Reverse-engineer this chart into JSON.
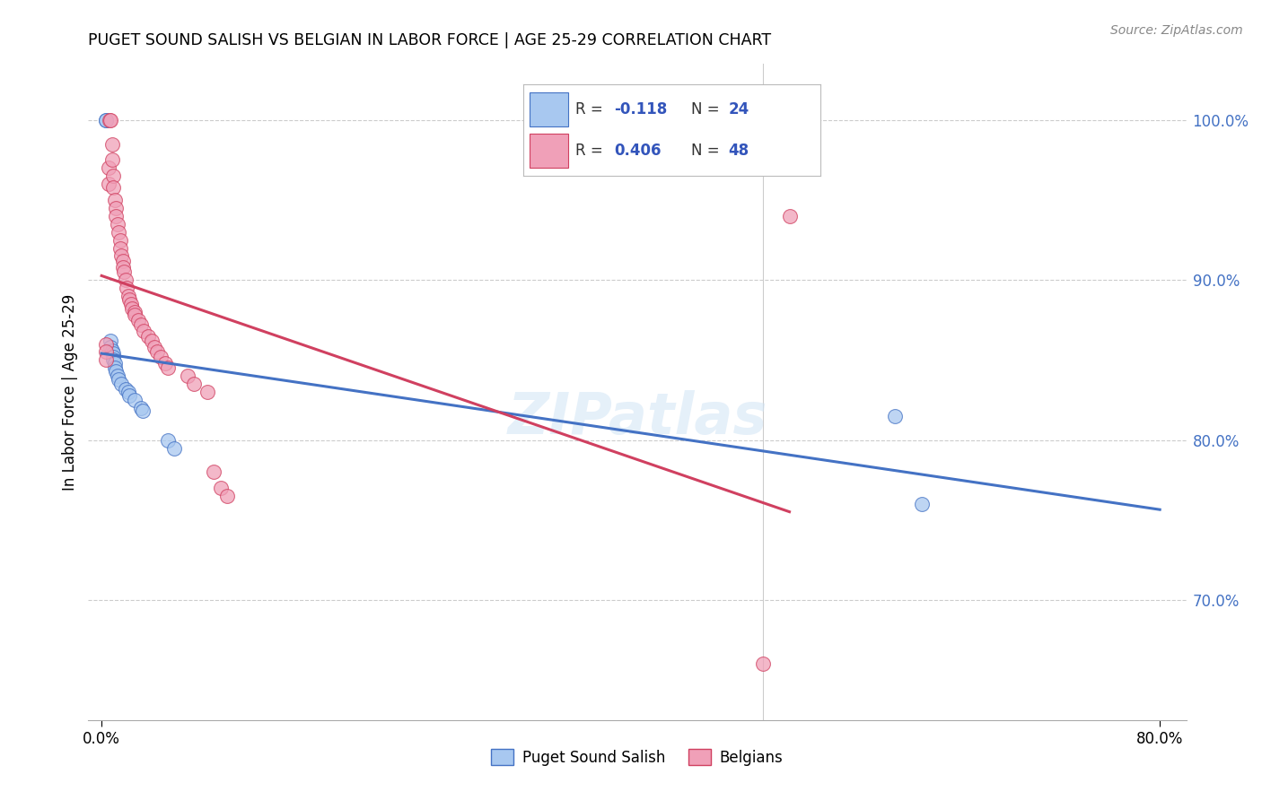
{
  "title": "PUGET SOUND SALISH VS BELGIAN IN LABOR FORCE | AGE 25-29 CORRELATION CHART",
  "source": "Source: ZipAtlas.com",
  "ylabel": "In Labor Force | Age 25-29",
  "xlim": [
    -0.01,
    0.82
  ],
  "ylim": [
    0.625,
    1.035
  ],
  "salish_R": -0.118,
  "salish_N": 24,
  "belgian_R": 0.406,
  "belgian_N": 48,
  "salish_color": "#A8C8F0",
  "belgian_color": "#F0A0B8",
  "salish_line_color": "#4472C4",
  "belgian_line_color": "#D04060",
  "background_color": "#FFFFFF",
  "grid_color": "#CCCCCC",
  "watermark": "ZIPatlas",
  "legend_label_1": "Puget Sound Salish",
  "legend_label_2": "Belgians",
  "salish_x": [
    0.003,
    0.003,
    0.007,
    0.007,
    0.008,
    0.009,
    0.009,
    0.009,
    0.01,
    0.01,
    0.011,
    0.012,
    0.013,
    0.015,
    0.018,
    0.02,
    0.021,
    0.025,
    0.03,
    0.031,
    0.05,
    0.055,
    0.6,
    0.62
  ],
  "salish_y": [
    1.0,
    1.0,
    0.862,
    0.858,
    0.856,
    0.854,
    0.852,
    0.85,
    0.848,
    0.845,
    0.843,
    0.84,
    0.838,
    0.835,
    0.832,
    0.83,
    0.828,
    0.825,
    0.82,
    0.818,
    0.8,
    0.795,
    0.815,
    0.76
  ],
  "belgian_x": [
    0.003,
    0.003,
    0.003,
    0.005,
    0.005,
    0.006,
    0.007,
    0.008,
    0.008,
    0.009,
    0.009,
    0.01,
    0.011,
    0.011,
    0.012,
    0.013,
    0.014,
    0.014,
    0.015,
    0.016,
    0.016,
    0.017,
    0.018,
    0.019,
    0.02,
    0.021,
    0.022,
    0.023,
    0.025,
    0.025,
    0.028,
    0.03,
    0.032,
    0.035,
    0.038,
    0.04,
    0.042,
    0.045,
    0.048,
    0.05,
    0.065,
    0.07,
    0.08,
    0.085,
    0.09,
    0.095,
    0.5,
    0.52
  ],
  "belgian_y": [
    0.86,
    0.855,
    0.85,
    0.97,
    0.96,
    1.0,
    1.0,
    0.985,
    0.975,
    0.965,
    0.958,
    0.95,
    0.945,
    0.94,
    0.935,
    0.93,
    0.925,
    0.92,
    0.915,
    0.912,
    0.908,
    0.905,
    0.9,
    0.895,
    0.89,
    0.888,
    0.885,
    0.882,
    0.88,
    0.878,
    0.875,
    0.872,
    0.868,
    0.865,
    0.862,
    0.858,
    0.855,
    0.852,
    0.848,
    0.845,
    0.84,
    0.835,
    0.83,
    0.78,
    0.77,
    0.765,
    0.66,
    0.94
  ]
}
